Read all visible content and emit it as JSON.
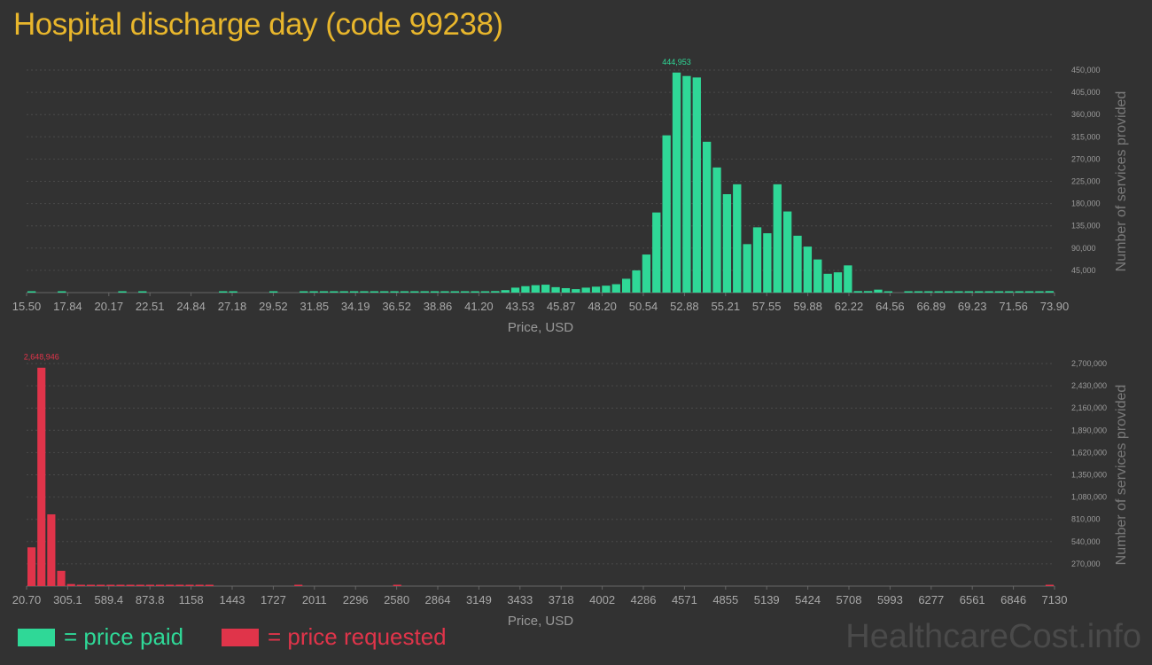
{
  "title": "Hospital discharge day (code 99238)",
  "colors": {
    "paid": "#2fd897",
    "requested": "#e0344a",
    "title": "#e8b62c"
  },
  "legend": {
    "paid_label": "= price paid",
    "requested_label": "= price requested"
  },
  "watermark": "HealthcareCost.info",
  "chart_data": [
    {
      "type": "bar",
      "series_name": "price paid",
      "xlabel": "Price, USD",
      "ylabel": "Number of services provided",
      "ylim": [
        0,
        450000
      ],
      "xtick_labels": [
        "15.50",
        "17.84",
        "20.17",
        "22.51",
        "24.84",
        "27.18",
        "29.52",
        "31.85",
        "34.19",
        "36.52",
        "38.86",
        "41.20",
        "43.53",
        "45.87",
        "48.20",
        "50.54",
        "52.88",
        "55.21",
        "57.55",
        "59.88",
        "62.22",
        "64.56",
        "66.89",
        "69.23",
        "71.56",
        "73.90"
      ],
      "ytick_labels": [
        "45,000",
        "90,000",
        "135,000",
        "180,000",
        "225,000",
        "270,000",
        "315,000",
        "360,000",
        "405,000",
        "450,000"
      ],
      "ytick_values": [
        45000,
        90000,
        135000,
        180000,
        225000,
        270000,
        315000,
        360000,
        405000,
        450000
      ],
      "peak_label": "444,953",
      "values": [
        2000,
        0,
        0,
        1500,
        0,
        0,
        0,
        0,
        0,
        1000,
        0,
        1500,
        0,
        0,
        0,
        0,
        0,
        0,
        0,
        1500,
        1500,
        0,
        0,
        0,
        1500,
        0,
        0,
        1000,
        1500,
        1500,
        1000,
        1500,
        1500,
        1000,
        1500,
        1000,
        1500,
        1500,
        1000,
        1000,
        1000,
        1000,
        1500,
        2000,
        2000,
        2000,
        3000,
        5000,
        10000,
        13000,
        15000,
        16000,
        11000,
        9000,
        7000,
        10000,
        12000,
        14000,
        17000,
        28000,
        45000,
        77000,
        162000,
        318000,
        444953,
        438000,
        435000,
        305000,
        253000,
        199000,
        219000,
        98000,
        132000,
        120000,
        219000,
        164000,
        115000,
        93000,
        67000,
        38000,
        41000,
        55000,
        3000,
        3000,
        6000,
        1000,
        0,
        1000,
        1500,
        1000,
        1000,
        1500,
        1000,
        1000,
        1500,
        1000,
        1000,
        1000,
        1000,
        1000,
        1500,
        3000
      ]
    },
    {
      "type": "bar",
      "series_name": "price requested",
      "xlabel": "Price, USD",
      "ylabel": "Number of services provided",
      "ylim": [
        0,
        2700000
      ],
      "xtick_labels": [
        "20.70",
        "305.1",
        "589.4",
        "873.8",
        "1158",
        "1443",
        "1727",
        "2011",
        "2296",
        "2580",
        "2864",
        "3149",
        "3433",
        "3718",
        "4002",
        "4286",
        "4571",
        "4855",
        "5139",
        "5424",
        "5708",
        "5993",
        "6277",
        "6561",
        "6846",
        "7130"
      ],
      "ytick_labels": [
        "270,000",
        "540,000",
        "810,000",
        "1,080,000",
        "1,350,000",
        "1,620,000",
        "1,890,000",
        "2,160,000",
        "2,430,000",
        "2,700,000"
      ],
      "ytick_values": [
        270000,
        540000,
        810000,
        1080000,
        1350000,
        1620000,
        1890000,
        2160000,
        2430000,
        2700000
      ],
      "peak_label": "2,648,946",
      "values": [
        470000,
        2648946,
        870000,
        185000,
        25000,
        10000,
        6000,
        4000,
        3000,
        3000,
        3000,
        2000,
        2000,
        3000,
        1500,
        1500,
        4000,
        1500,
        1500,
        0,
        0,
        0,
        0,
        0,
        0,
        0,
        0,
        1500,
        0,
        0,
        0,
        0,
        0,
        0,
        0,
        0,
        0,
        2000,
        0,
        0,
        0,
        0,
        0,
        0,
        0,
        0,
        0,
        0,
        0,
        0,
        0,
        0,
        0,
        0,
        0,
        0,
        0,
        0,
        0,
        0,
        0,
        0,
        0,
        0,
        0,
        0,
        0,
        0,
        0,
        0,
        0,
        0,
        0,
        0,
        0,
        0,
        0,
        0,
        0,
        0,
        0,
        0,
        0,
        0,
        0,
        0,
        0,
        0,
        0,
        0,
        0,
        0,
        0,
        0,
        0,
        0,
        0,
        0,
        0,
        0,
        0,
        0,
        0,
        2000
      ]
    }
  ]
}
